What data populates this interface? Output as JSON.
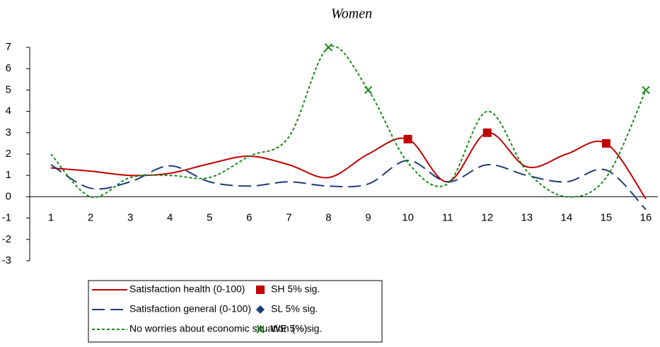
{
  "chart_data": {
    "type": "line",
    "title": "Women",
    "categories": [
      "1",
      "2",
      "3",
      "4",
      "5",
      "6",
      "7",
      "8",
      "9",
      "10",
      "11",
      "12",
      "13",
      "14",
      "15",
      "16"
    ],
    "ylim": [
      -3,
      7
    ],
    "yticks": [
      -3,
      -2,
      -1,
      0,
      1,
      2,
      3,
      4,
      5,
      6,
      7
    ],
    "smooth": true,
    "legend": "bottom",
    "series": [
      {
        "name": "Satisfaction health (0-100)",
        "color": "#c00000",
        "style": "solid",
        "values": [
          1.35,
          1.2,
          1.0,
          1.1,
          1.55,
          1.9,
          1.5,
          0.9,
          2.0,
          2.7,
          0.7,
          3.0,
          1.4,
          2.0,
          2.5,
          -0.1
        ]
      },
      {
        "name": "Satisfaction general (0-100)",
        "color": "#1f3c78",
        "style": "dashed",
        "values": [
          1.5,
          0.4,
          0.7,
          1.45,
          0.7,
          0.5,
          0.7,
          0.5,
          0.6,
          1.7,
          0.7,
          1.5,
          1.0,
          0.7,
          1.25,
          -0.6
        ]
      },
      {
        "name": "No worries about economic situation (%)",
        "color": "#1a8a1a",
        "style": "dotted",
        "values": [
          2.0,
          0.0,
          0.9,
          1.0,
          0.9,
          1.9,
          2.8,
          7.0,
          5.0,
          1.6,
          0.6,
          4.0,
          1.2,
          0.0,
          0.9,
          5.0
        ]
      },
      {
        "name": "SH 5% sig.",
        "color": "#c00000",
        "marker": "square",
        "values": [
          null,
          null,
          null,
          null,
          null,
          null,
          null,
          null,
          null,
          2.7,
          null,
          3.0,
          null,
          null,
          2.5,
          null
        ]
      },
      {
        "name": "SL 5% sig.",
        "color": "#1f3c78",
        "marker": "diamond",
        "values": [
          null,
          null,
          null,
          null,
          null,
          null,
          null,
          null,
          null,
          null,
          null,
          null,
          null,
          null,
          null,
          null
        ]
      },
      {
        "name": "WE 5% sig.",
        "color": "#1a8a1a",
        "marker": "x",
        "values": [
          null,
          null,
          null,
          null,
          null,
          null,
          null,
          7.0,
          5.0,
          null,
          null,
          null,
          null,
          null,
          null,
          5.0
        ]
      }
    ]
  }
}
